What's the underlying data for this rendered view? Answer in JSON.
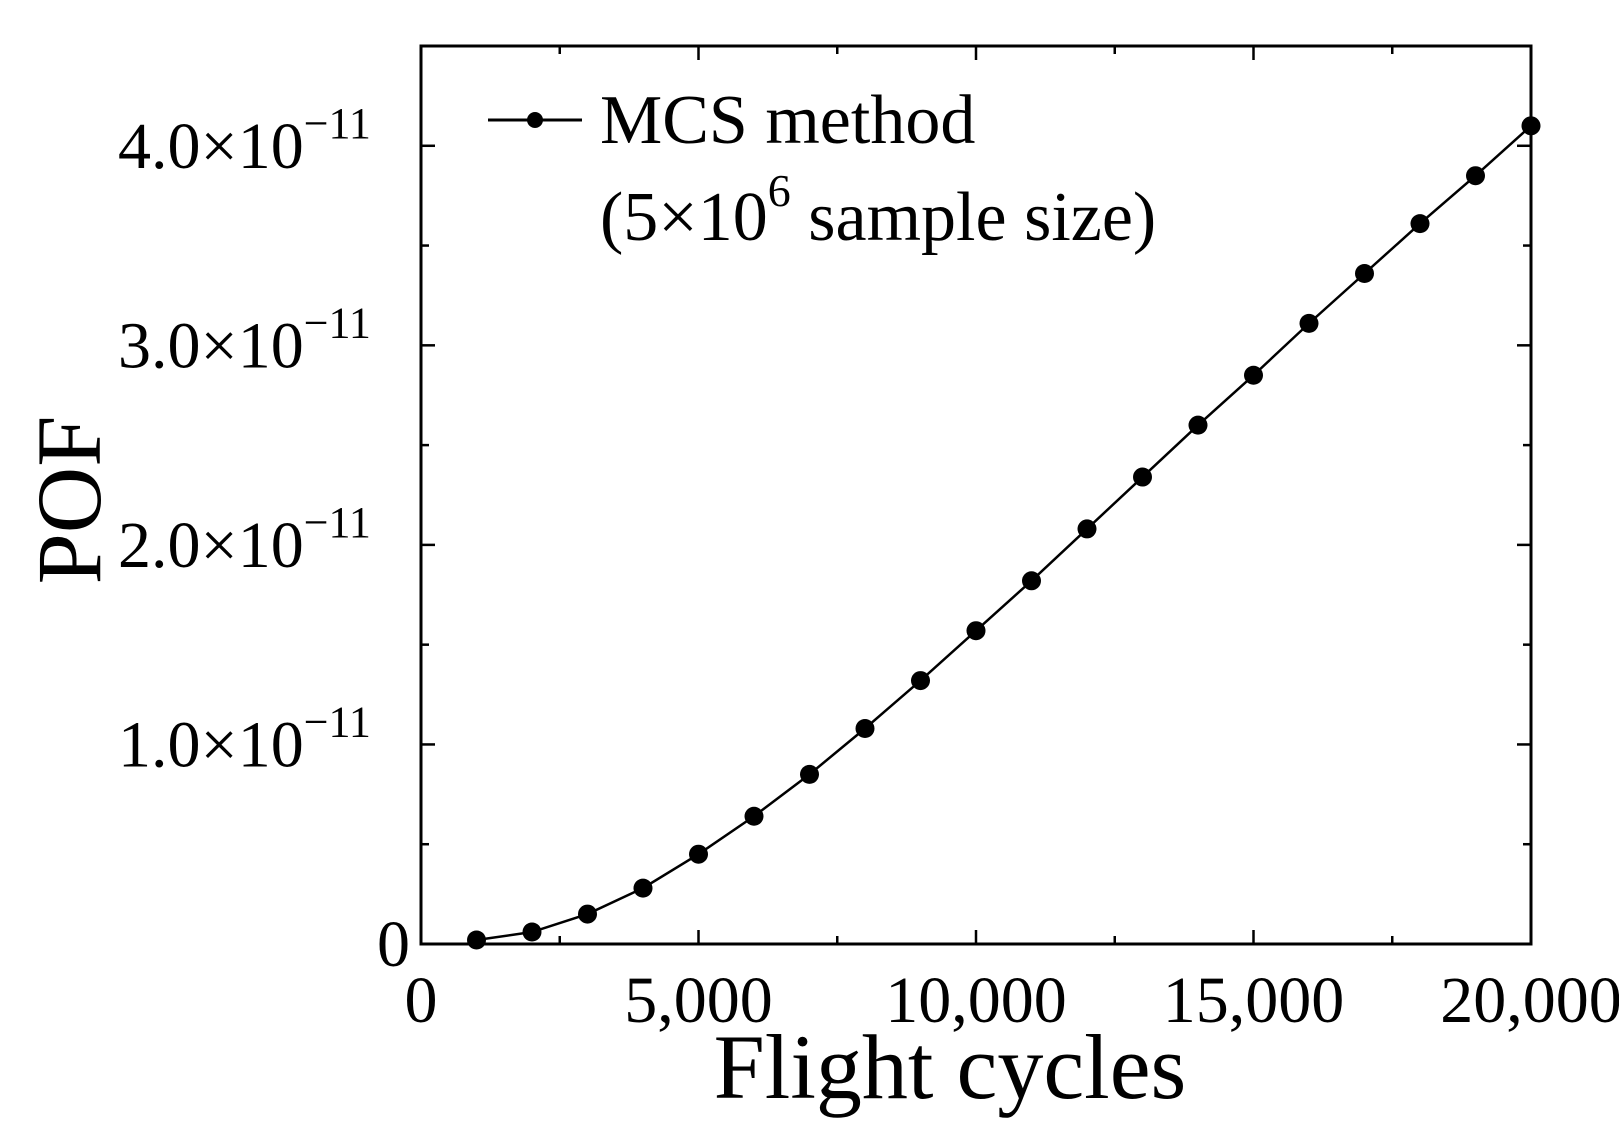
{
  "chart_data": {
    "type": "line",
    "title": "",
    "xlabel": "Flight cycles",
    "ylabel": "POF",
    "xlim": [
      0,
      20000
    ],
    "ylim": [
      0,
      4.5e-11
    ],
    "xticks": [
      {
        "value": 0,
        "label": "0"
      },
      {
        "value": 5000,
        "label": "5,000"
      },
      {
        "value": 10000,
        "label": "10,000"
      },
      {
        "value": 15000,
        "label": "15,000"
      },
      {
        "value": 20000,
        "label": "20,000"
      }
    ],
    "yticks": [
      {
        "value": 0,
        "mantissa": "0",
        "exponent": ""
      },
      {
        "value": 1e-11,
        "mantissa": "1.0×10",
        "exponent": "−11"
      },
      {
        "value": 2e-11,
        "mantissa": "2.0×10",
        "exponent": "−11"
      },
      {
        "value": 3e-11,
        "mantissa": "3.0×10",
        "exponent": "−11"
      },
      {
        "value": 4e-11,
        "mantissa": "4.0×10",
        "exponent": "−11"
      }
    ],
    "legend": {
      "position": "top-left",
      "line1": "MCS method",
      "line2_prefix": "(5×10",
      "line2_sup": "6",
      "line2_suffix": " sample size)"
    },
    "series": [
      {
        "name": "MCS method (5×10^6 sample size)",
        "color": "#000000",
        "x": [
          1000,
          2000,
          3000,
          4000,
          5000,
          6000,
          7000,
          8000,
          9000,
          10000,
          11000,
          12000,
          13000,
          14000,
          15000,
          16000,
          17000,
          18000,
          19000,
          20000
        ],
        "y": [
          2e-13,
          6e-13,
          1.5e-12,
          2.8e-12,
          4.5e-12,
          6.4e-12,
          8.5e-12,
          1.08e-11,
          1.32e-11,
          1.57e-11,
          1.82e-11,
          2.08e-11,
          2.34e-11,
          2.6e-11,
          2.85e-11,
          3.11e-11,
          3.36e-11,
          3.61e-11,
          3.85e-11,
          4.1e-11
        ]
      }
    ]
  }
}
